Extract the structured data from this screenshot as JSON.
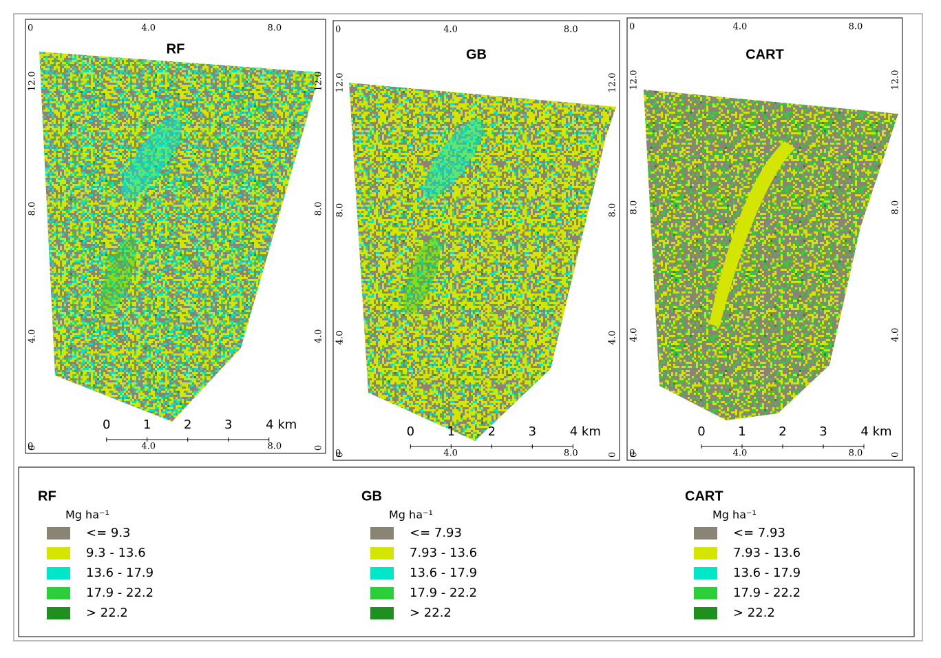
{
  "panels": [
    {
      "title": "RF",
      "top_labels": [
        "0",
        "4.0",
        "8.0"
      ],
      "left_labels": [
        "12.0",
        "8.0",
        "4.0",
        "0"
      ],
      "right_labels": [
        "12.0",
        "8.0",
        "4.0",
        "0"
      ],
      "bottom_labels": [
        "0",
        "4.0",
        "8.0"
      ],
      "scale_labels": [
        "0",
        "1",
        "2",
        "3",
        "4 km"
      ]
    },
    {
      "title": "GB",
      "top_labels": [
        "0",
        "4.0",
        "8.0"
      ],
      "left_labels": [
        "12.0",
        "8.0",
        "4.0",
        "0"
      ],
      "right_labels": [
        "12.0",
        "8.0",
        "4.0",
        "0"
      ],
      "bottom_labels": [
        "0",
        "4.0",
        "8.0"
      ],
      "scale_labels": [
        "0",
        "1",
        "2",
        "3",
        "4 km"
      ]
    },
    {
      "title": "CART",
      "top_labels": [
        "0",
        "4.0",
        "8.0"
      ],
      "left_labels": [
        "12.0",
        "8.0",
        "4.0",
        "0"
      ],
      "right_labels": [
        "12.0",
        "8.0",
        "4.0",
        "0"
      ],
      "bottom_labels": [
        "0",
        "4.0",
        "8.0"
      ],
      "scale_labels": [
        "0",
        "1",
        "2",
        "3",
        "4 km"
      ]
    }
  ],
  "legend": [
    {
      "title": "RF",
      "unit": "Mg ha⁻¹",
      "items": [
        {
          "label": "<= 9.3",
          "color": "#8a8474"
        },
        {
          "label": "9.3 - 13.6",
          "color": "#d4e600"
        },
        {
          "label": "13.6 - 17.9",
          "color": "#00e6c8"
        },
        {
          "label": "17.9 - 22.2",
          "color": "#2dce3c"
        },
        {
          "label": "> 22.2",
          "color": "#1f8f1f"
        }
      ]
    },
    {
      "title": "GB",
      "unit": "Mg ha⁻¹",
      "items": [
        {
          "label": "<= 7.93",
          "color": "#8a8474"
        },
        {
          "label": "7.93 - 13.6",
          "color": "#d4e600"
        },
        {
          "label": "13.6 - 17.9",
          "color": "#00e6c8"
        },
        {
          "label": "17.9 - 22.2",
          "color": "#2dce3c"
        },
        {
          "label": "> 22.2",
          "color": "#1f8f1f"
        }
      ]
    },
    {
      "title": "CART",
      "unit": "Mg ha⁻¹",
      "items": [
        {
          "label": "<= 7.93",
          "color": "#8a8474"
        },
        {
          "label": "7.93 - 13.6",
          "color": "#d4e600"
        },
        {
          "label": "13.6 - 17.9",
          "color": "#00e6c8"
        },
        {
          "label": "17.9 - 22.2",
          "color": "#2dce3c"
        },
        {
          "label": "> 22.2",
          "color": "#1f8f1f"
        }
      ]
    }
  ]
}
